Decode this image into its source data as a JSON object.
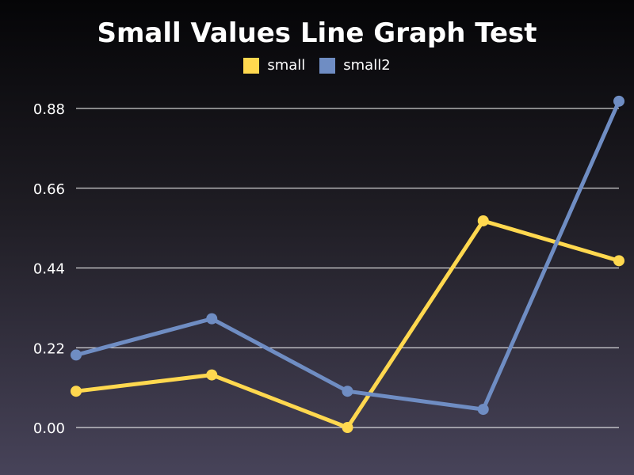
{
  "chart_data": {
    "type": "line",
    "title": "Small Values Line Graph Test",
    "xlabel": "",
    "ylabel": "",
    "x": [
      1,
      2,
      3,
      4,
      5
    ],
    "ylim": [
      0,
      0.88
    ],
    "yticks": [
      "0.00",
      "0.22",
      "0.44",
      "0.66",
      "0.88"
    ],
    "grid": true,
    "legend_position": "top-center",
    "series": [
      {
        "name": "small",
        "color": "#ffd84f",
        "values": [
          0.1,
          0.145,
          0.0,
          0.57,
          0.46
        ]
      },
      {
        "name": "small2",
        "color": "#6f8dc3",
        "values": [
          0.2,
          0.3,
          0.1,
          0.05,
          0.9
        ]
      }
    ]
  }
}
